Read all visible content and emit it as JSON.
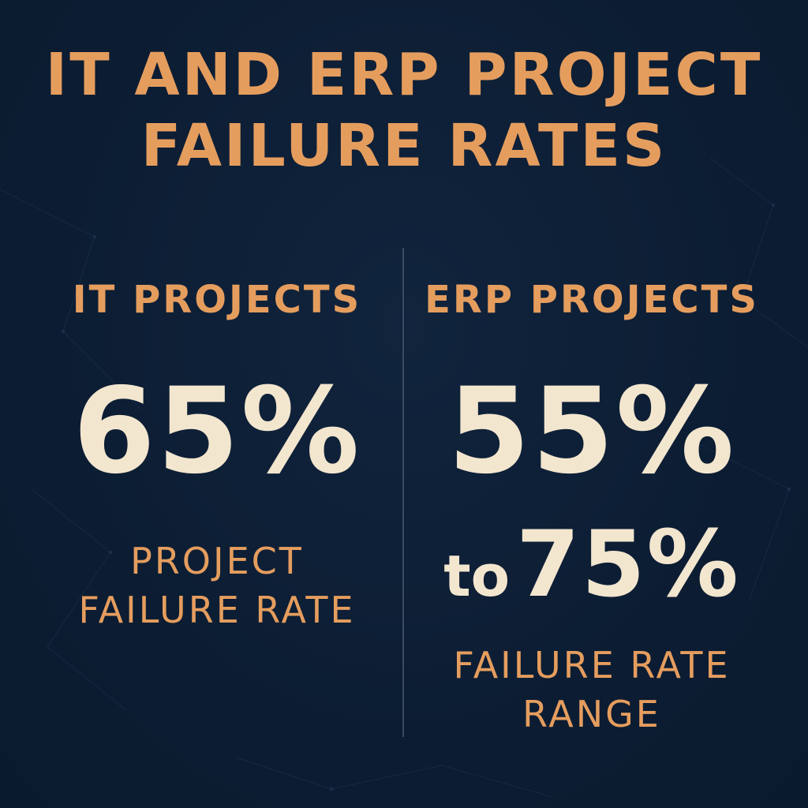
{
  "title": {
    "line1": "IT AND ERP PROJECT",
    "line2": "FAILURE RATES"
  },
  "left_panel": {
    "heading": "IT PROJECTS",
    "value": "65%",
    "caption_line1": "PROJECT",
    "caption_line2": "FAILURE RATE"
  },
  "right_panel": {
    "heading": "ERP PROJECTS",
    "value_low": "55%",
    "range_word": "to",
    "value_high": "75%",
    "caption_line1": "FAILURE RATE",
    "caption_line2": "RANGE"
  },
  "colors": {
    "background": "#0d1f36",
    "accent": "#e59d5e",
    "number": "#f3e6cf",
    "divider": "#3a4a60"
  }
}
